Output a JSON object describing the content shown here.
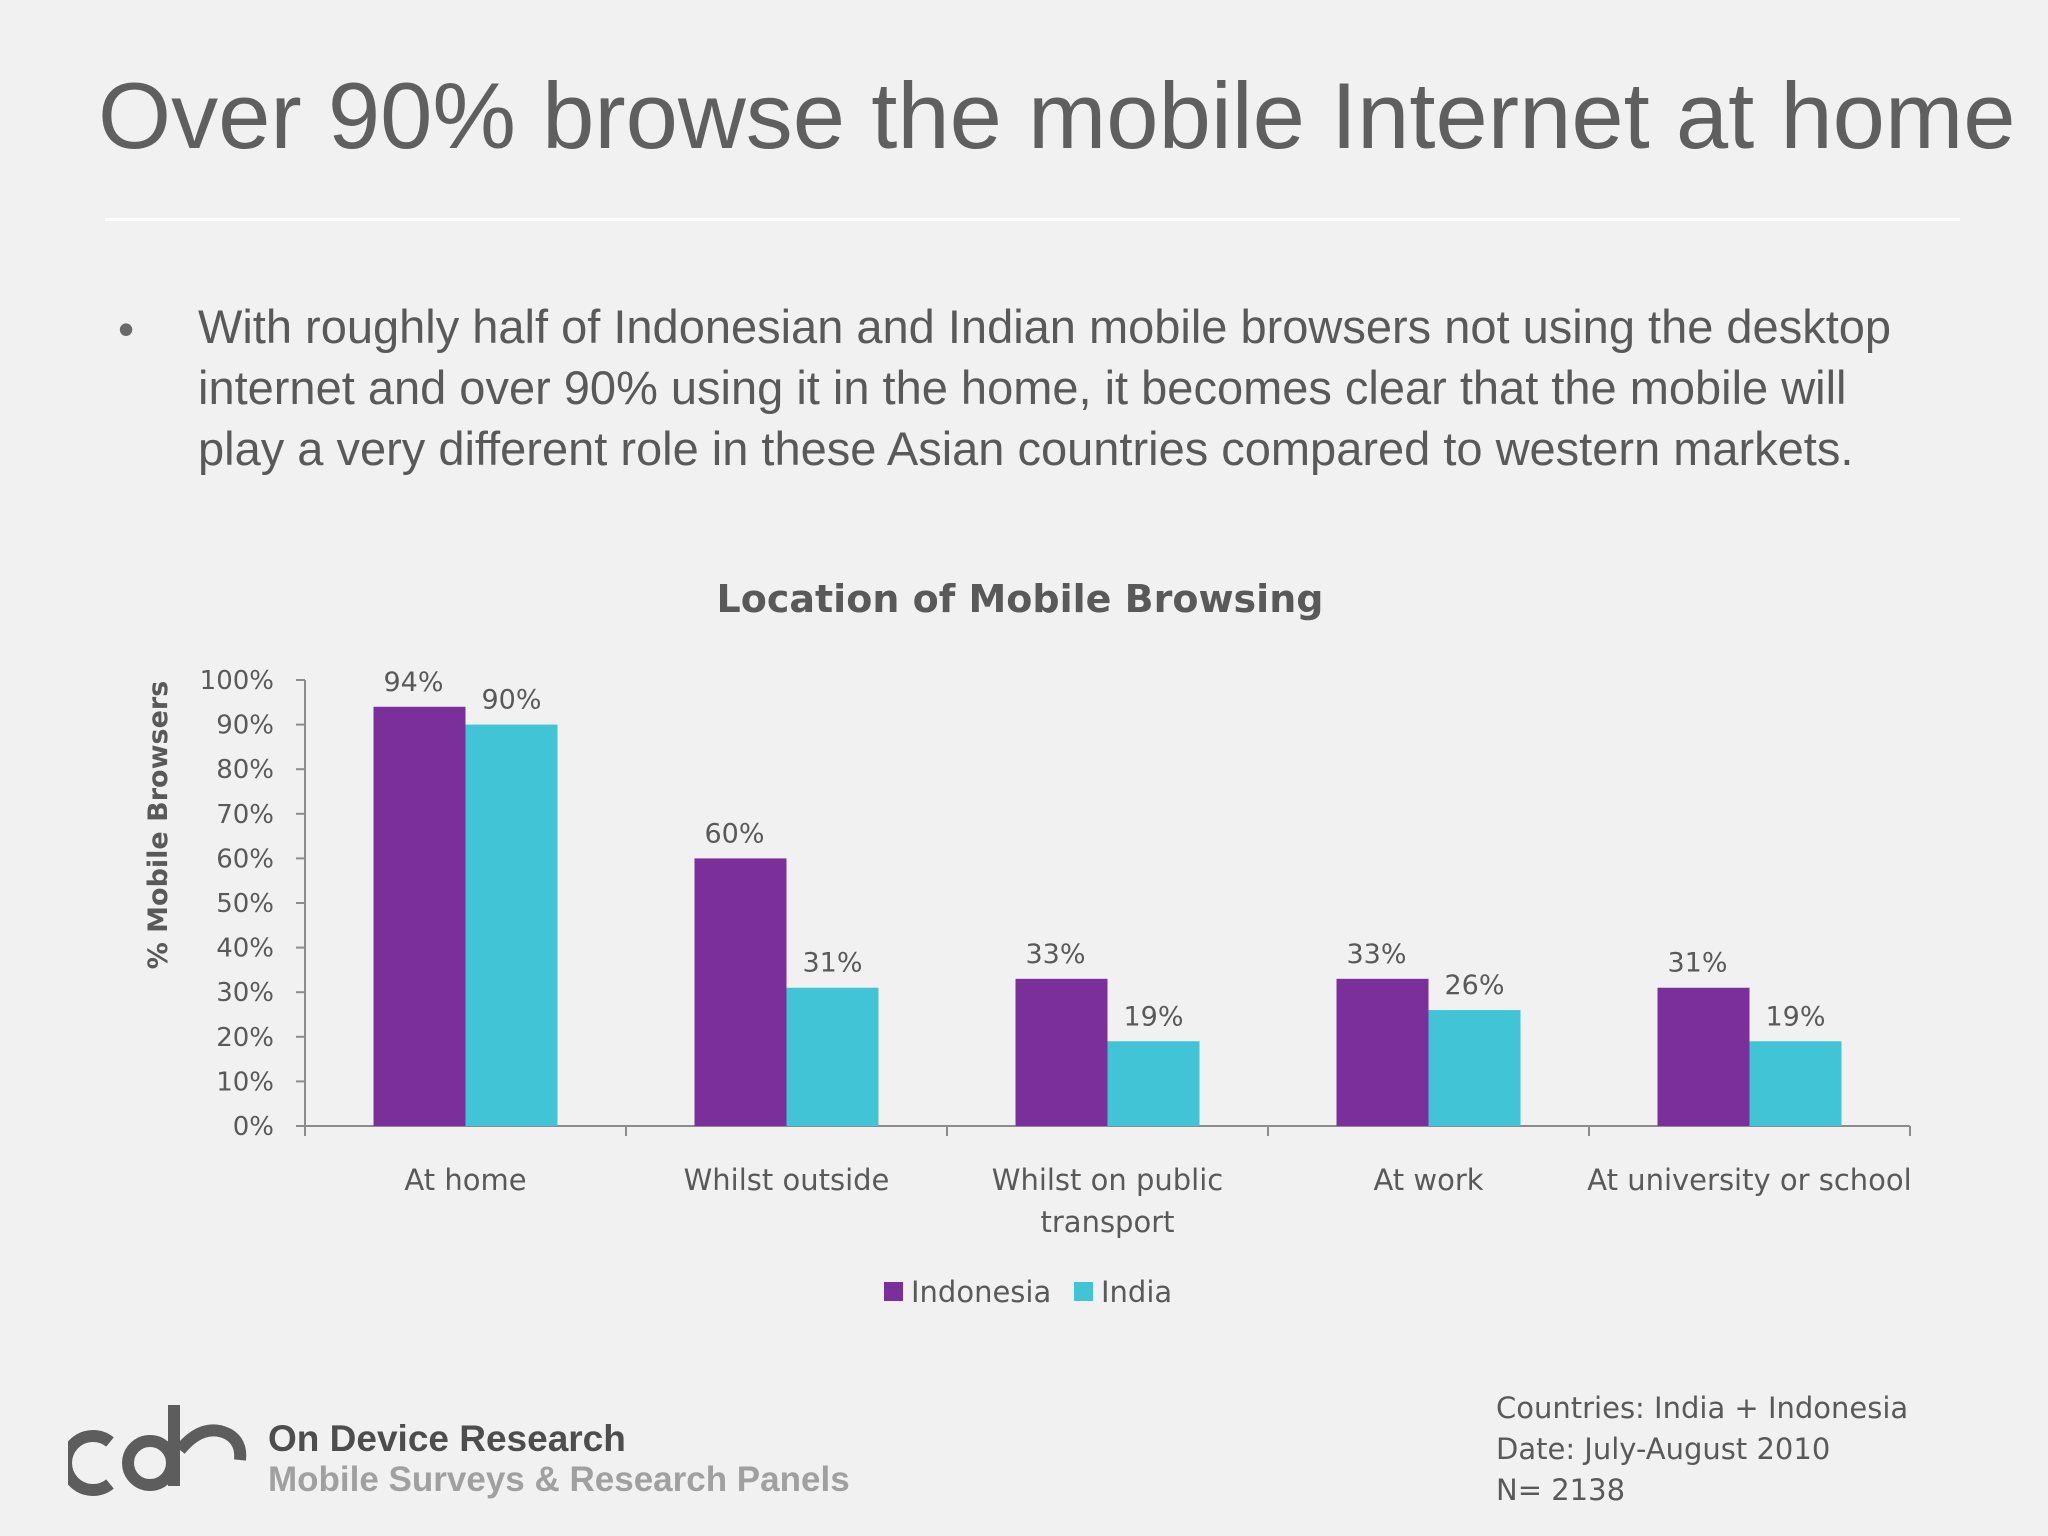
{
  "slide": {
    "title": "Over 90% browse the mobile Internet at home",
    "bullet": "With roughly half of Indonesian and Indian mobile browsers not using the desktop internet and over 90% using it in the home, it becomes clear that the mobile will play a very different role in these Asian countries compared to western markets."
  },
  "chart_data": {
    "type": "bar",
    "title": "Location of Mobile Browsing",
    "xlabel": "",
    "ylabel": "% Mobile Browsers",
    "ylim": [
      0,
      100
    ],
    "y_ticks": [
      0,
      10,
      20,
      30,
      40,
      50,
      60,
      70,
      80,
      90,
      100
    ],
    "y_tick_labels": [
      "0%",
      "10%",
      "20%",
      "30%",
      "40%",
      "50%",
      "60%",
      "70%",
      "80%",
      "90%",
      "100%"
    ],
    "categories": [
      [
        "At home"
      ],
      [
        "Whilst outside"
      ],
      [
        "Whilst on public",
        "transport"
      ],
      [
        "At work"
      ],
      [
        "At university or school"
      ]
    ],
    "series": [
      {
        "name": "Indonesia",
        "color": "#7b2f9a",
        "values": [
          94,
          60,
          33,
          33,
          31
        ],
        "labels": [
          "94%",
          "60%",
          "33%",
          "33%",
          "31%"
        ]
      },
      {
        "name": "India",
        "color": "#41c4d6",
        "values": [
          90,
          31,
          19,
          26,
          19
        ],
        "labels": [
          "90%",
          "31%",
          "19%",
          "26%",
          "19%"
        ]
      }
    ],
    "legend_position": "bottom",
    "grid": false
  },
  "footer": {
    "logo_name": "On Device Research",
    "logo_tagline": "Mobile Surveys & Research Panels",
    "countries": "Countries: India + Indonesia",
    "date": "Date:  July-August 2010",
    "n": "N= 2138"
  }
}
